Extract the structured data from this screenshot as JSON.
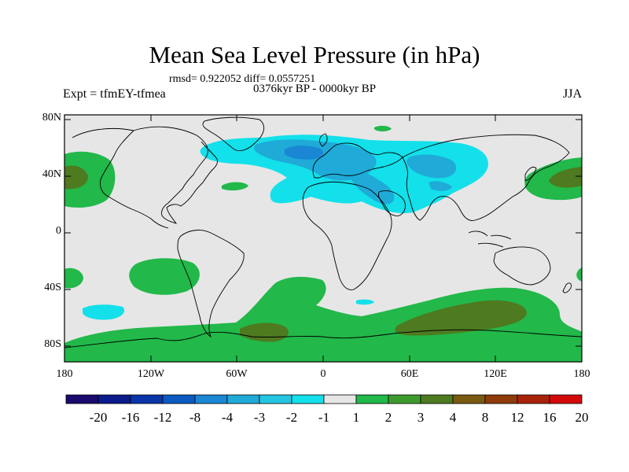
{
  "title": "Mean Sea Level Pressure (in hPa)",
  "stats": "rmsd= 0.922052  diff= 0.0557251",
  "period": "0376kyr BP - 0000kyr BP",
  "experiment": "Expt = tfmEY-tfmea",
  "season": "JJA",
  "lat_labels": [
    "80N",
    "40N",
    "0",
    "40S",
    "80S"
  ],
  "lon_labels": [
    "180",
    "120W",
    "60W",
    "0",
    "60E",
    "120E",
    "180"
  ],
  "colorbar": {
    "labels": [
      "-20",
      "-16",
      "-12",
      "-8",
      "-4",
      "-3",
      "-2",
      "-1",
      "1",
      "2",
      "3",
      "4",
      "8",
      "12",
      "16",
      "20"
    ],
    "colors": [
      "#1a0a6e",
      "#0b1b8c",
      "#0a35a8",
      "#0a5ac2",
      "#1a86d4",
      "#1faad8",
      "#25c6e2",
      "#13e0ea",
      "#e6e6e6",
      "#22b84a",
      "#3f9a2e",
      "#4e7a20",
      "#7a5a10",
      "#8f3b0a",
      "#a9230a",
      "#d40a0a"
    ]
  },
  "map_colors": {
    "background": "#e6e6e6",
    "positive_1": "#22b84a",
    "positive_2": "#4e7a20",
    "negative_1": "#13e0ea",
    "negative_2": "#1faad8",
    "negative_3": "#1a86d4"
  }
}
